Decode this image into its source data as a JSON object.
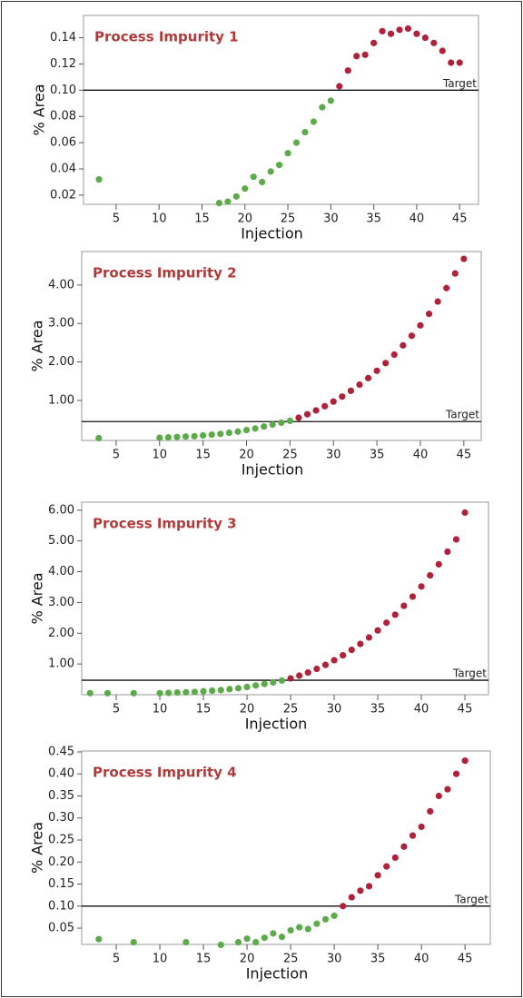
{
  "chart_data": [
    {
      "type": "scatter",
      "title": "Process Impurity 1",
      "xlabel": "Injection",
      "ylabel": "% Area",
      "xlim": [
        1.2,
        47.2
      ],
      "xticks": [
        5,
        10,
        15,
        20,
        25,
        30,
        35,
        40,
        45
      ],
      "ylim": [
        0.013,
        0.157
      ],
      "yticks": [
        0.02,
        0.04,
        0.06,
        0.08,
        {
          "value": 0.1,
          "label": "0.10"
        },
        0.12,
        0.14
      ],
      "target": {
        "value": 0.1,
        "label": "Target"
      },
      "series": [
        {
          "color": "#5cab4a",
          "x": [
            3,
            17,
            18,
            19,
            20,
            21,
            22,
            23,
            24,
            25,
            26,
            27,
            28,
            29,
            30
          ],
          "values": [
            0.032,
            0.014,
            0.015,
            0.019,
            0.025,
            0.034,
            0.03,
            0.038,
            0.043,
            0.052,
            0.06,
            0.068,
            0.076,
            0.087,
            0.092
          ]
        },
        {
          "color": "#b0223a",
          "x": [
            31,
            32,
            33,
            34,
            35,
            36,
            37,
            38,
            39,
            40,
            41,
            42,
            43,
            44,
            45
          ],
          "values": [
            0.103,
            0.115,
            0.126,
            0.127,
            0.136,
            0.145,
            0.143,
            0.146,
            0.147,
            0.143,
            0.14,
            0.136,
            0.13,
            0.121,
            0.121
          ]
        }
      ]
    },
    {
      "type": "scatter",
      "title": "Process Impurity 2",
      "xlabel": "Injection",
      "ylabel": "% Area",
      "xlim": [
        1.04,
        47
      ],
      "xticks": [
        5,
        10,
        15,
        20,
        25,
        30,
        35,
        40,
        45
      ],
      "ylim": [
        -0.04,
        4.87
      ],
      "yticks": [
        {
          "value": 1,
          "label": "1.00"
        },
        {
          "value": 2,
          "label": "2.00"
        },
        {
          "value": 3,
          "label": "3.00"
        },
        {
          "value": 4,
          "label": "4.00"
        }
      ],
      "target": {
        "value": 0.45,
        "label": "Target"
      },
      "series": [
        {
          "color": "#5cab4a",
          "x": [
            3,
            10,
            11,
            12,
            13,
            14,
            15,
            16,
            17,
            18,
            19,
            20,
            21,
            22,
            23,
            24,
            25
          ],
          "values": [
            0.02,
            0.03,
            0.04,
            0.05,
            0.06,
            0.07,
            0.09,
            0.11,
            0.13,
            0.16,
            0.19,
            0.23,
            0.27,
            0.32,
            0.37,
            0.42,
            0.47
          ]
        },
        {
          "color": "#b0223a",
          "x": [
            26,
            27,
            28,
            29,
            30,
            31,
            32,
            33,
            34,
            35,
            36,
            37,
            38,
            39,
            40,
            41,
            42,
            43,
            44,
            45
          ],
          "values": [
            0.55,
            0.64,
            0.74,
            0.85,
            0.97,
            1.1,
            1.25,
            1.41,
            1.58,
            1.77,
            1.97,
            2.19,
            2.43,
            2.68,
            2.95,
            3.25,
            3.57,
            3.92,
            4.3,
            4.68
          ]
        }
      ]
    },
    {
      "type": "scatter",
      "title": "Process Impurity 3",
      "xlabel": "Injection",
      "ylabel": "% Area",
      "xlim": [
        1.04,
        47.7
      ],
      "xticks": [
        5,
        10,
        15,
        20,
        25,
        30,
        35,
        40,
        45
      ],
      "ylim": [
        0,
        6.26
      ],
      "yticks": [
        {
          "value": 1,
          "label": "1.00"
        },
        {
          "value": 2,
          "label": "2.00"
        },
        {
          "value": 3,
          "label": "3.00"
        },
        {
          "value": 4,
          "label": "4.00"
        },
        {
          "value": 5,
          "label": "5.00"
        },
        {
          "value": 6,
          "label": "6.00"
        }
      ],
      "target": {
        "value": 0.47,
        "label": "Target"
      },
      "series": [
        {
          "color": "#5cab4a",
          "x": [
            2,
            4,
            7,
            10,
            11,
            12,
            13,
            14,
            15,
            16,
            17,
            18,
            19,
            20,
            21,
            22,
            23,
            24
          ],
          "values": [
            0.05,
            0.05,
            0.05,
            0.05,
            0.06,
            0.07,
            0.08,
            0.09,
            0.11,
            0.13,
            0.15,
            0.18,
            0.21,
            0.25,
            0.3,
            0.35,
            0.4,
            0.46
          ]
        },
        {
          "color": "#b0223a",
          "x": [
            25,
            26,
            27,
            28,
            29,
            30,
            31,
            32,
            33,
            34,
            35,
            36,
            37,
            38,
            39,
            40,
            41,
            42,
            43,
            44,
            45
          ],
          "values": [
            0.53,
            0.62,
            0.72,
            0.84,
            0.97,
            1.12,
            1.28,
            1.46,
            1.65,
            1.86,
            2.09,
            2.34,
            2.6,
            2.89,
            3.19,
            3.52,
            3.88,
            4.24,
            4.65,
            5.05,
            5.92
          ]
        }
      ]
    },
    {
      "type": "scatter",
      "title": "Process Impurity 4",
      "xlabel": "Injection",
      "ylabel": "% Area",
      "xlim": [
        1.04,
        47.9
      ],
      "xticks": [
        5,
        10,
        15,
        20,
        25,
        30,
        35,
        40,
        45
      ],
      "ylim": [
        0.013,
        0.452
      ],
      "yticks": [
        0.05,
        {
          "value": 0.1,
          "label": "0.10"
        },
        0.15,
        {
          "value": 0.2,
          "label": "0.20"
        },
        0.25,
        {
          "value": 0.3,
          "label": "0.30"
        },
        0.35,
        {
          "value": 0.4,
          "label": "0.40"
        },
        0.45
      ],
      "target": {
        "value": 0.1,
        "label": "Target"
      },
      "series": [
        {
          "color": "#5cab4a",
          "x": [
            3,
            7,
            13,
            17,
            19,
            20,
            21,
            22,
            23,
            24,
            25,
            26,
            27,
            28,
            29,
            30
          ],
          "values": [
            0.025,
            0.018,
            0.018,
            0.012,
            0.018,
            0.026,
            0.018,
            0.028,
            0.038,
            0.03,
            0.045,
            0.052,
            0.048,
            0.06,
            0.07,
            0.078
          ]
        },
        {
          "color": "#b0223a",
          "x": [
            31,
            32,
            33,
            34,
            35,
            36,
            37,
            38,
            39,
            40,
            41,
            42,
            43,
            44,
            45
          ],
          "values": [
            0.1,
            0.12,
            0.135,
            0.145,
            0.17,
            0.19,
            0.21,
            0.235,
            0.26,
            0.28,
            0.315,
            0.35,
            0.365,
            0.4,
            0.43
          ]
        }
      ]
    }
  ]
}
